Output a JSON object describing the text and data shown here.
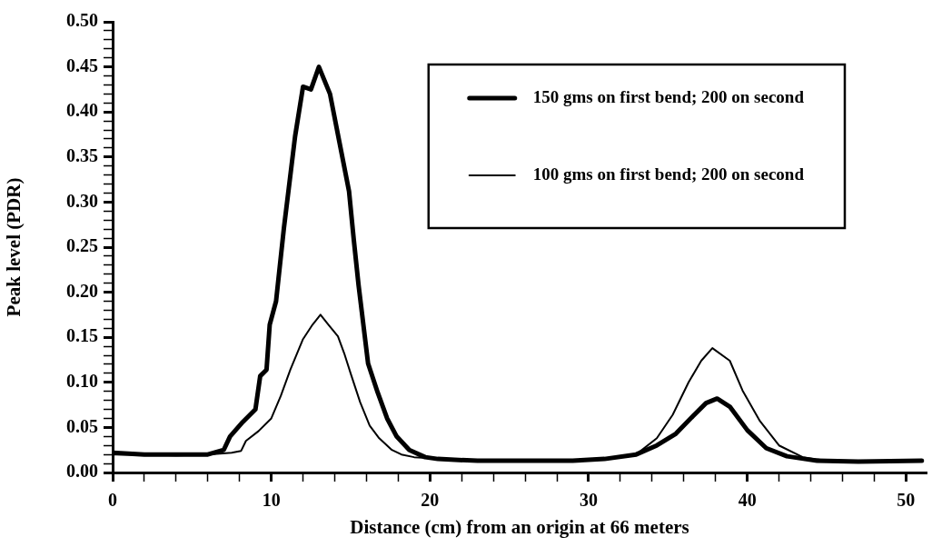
{
  "chart_data": {
    "type": "line",
    "xlabel": "Distance (cm) from an origin at 66 meters",
    "ylabel": "Peak level (PDR)",
    "xlim": [
      0,
      51.3
    ],
    "xticks": [
      0,
      {
        "value": 2,
        "label": null
      },
      {
        "value": 4,
        "label": null
      },
      {
        "value": 6,
        "label": null
      },
      {
        "value": 8,
        "label": null
      },
      10,
      {
        "value": 12,
        "label": null
      },
      {
        "value": 14,
        "label": null
      },
      {
        "value": 16,
        "label": null
      },
      {
        "value": 18,
        "label": null
      },
      20,
      {
        "value": 22,
        "label": null
      },
      {
        "value": 24,
        "label": null
      },
      {
        "value": 26,
        "label": null
      },
      {
        "value": 28,
        "label": null
      },
      30,
      {
        "value": 32,
        "label": null
      },
      {
        "value": 34,
        "label": null
      },
      {
        "value": 36,
        "label": null
      },
      {
        "value": 38,
        "label": null
      },
      40,
      {
        "value": 42,
        "label": null
      },
      {
        "value": 44,
        "label": null
      },
      {
        "value": 46,
        "label": null
      },
      {
        "value": 48,
        "label": null
      },
      50
    ],
    "ylim": [
      0,
      0.5
    ],
    "yticks": [
      {
        "value": 0,
        "label": "0.00"
      },
      {
        "value": 0.01,
        "label": null
      },
      {
        "value": 0.02,
        "label": null
      },
      {
        "value": 0.03,
        "label": null
      },
      {
        "value": 0.04,
        "label": null
      },
      {
        "value": 0.05,
        "label": "0.05"
      },
      {
        "value": 0.06,
        "label": null
      },
      {
        "value": 0.07,
        "label": null
      },
      {
        "value": 0.08,
        "label": null
      },
      {
        "value": 0.09,
        "label": null
      },
      {
        "value": 0.1,
        "label": "0.10"
      },
      {
        "value": 0.11,
        "label": null
      },
      {
        "value": 0.12,
        "label": null
      },
      {
        "value": 0.13,
        "label": null
      },
      {
        "value": 0.14,
        "label": null
      },
      {
        "value": 0.15,
        "label": "0.15"
      },
      {
        "value": 0.16,
        "label": null
      },
      {
        "value": 0.17,
        "label": null
      },
      {
        "value": 0.18,
        "label": null
      },
      {
        "value": 0.19,
        "label": null
      },
      {
        "value": 0.2,
        "label": "0.20"
      },
      {
        "value": 0.21,
        "label": null
      },
      {
        "value": 0.22,
        "label": null
      },
      {
        "value": 0.23,
        "label": null
      },
      {
        "value": 0.24,
        "label": null
      },
      {
        "value": 0.25,
        "label": "0.25"
      },
      {
        "value": 0.26,
        "label": null
      },
      {
        "value": 0.27,
        "label": null
      },
      {
        "value": 0.28,
        "label": null
      },
      {
        "value": 0.29,
        "label": null
      },
      {
        "value": 0.3,
        "label": "0.30"
      },
      {
        "value": 0.31,
        "label": null
      },
      {
        "value": 0.32,
        "label": null
      },
      {
        "value": 0.33,
        "label": null
      },
      {
        "value": 0.34,
        "label": null
      },
      {
        "value": 0.35,
        "label": "0.35"
      },
      {
        "value": 0.36,
        "label": null
      },
      {
        "value": 0.37,
        "label": null
      },
      {
        "value": 0.38,
        "label": null
      },
      {
        "value": 0.39,
        "label": null
      },
      {
        "value": 0.4,
        "label": "0.40"
      },
      {
        "value": 0.41,
        "label": null
      },
      {
        "value": 0.42,
        "label": null
      },
      {
        "value": 0.43,
        "label": null
      },
      {
        "value": 0.44,
        "label": null
      },
      {
        "value": 0.45,
        "label": "0.45"
      },
      {
        "value": 0.46,
        "label": null
      },
      {
        "value": 0.47,
        "label": null
      },
      {
        "value": 0.48,
        "label": null
      },
      {
        "value": 0.49,
        "label": null
      },
      {
        "value": 0.5,
        "label": "0.50"
      }
    ],
    "grid": false,
    "legend": "top right",
    "marker": "none",
    "line_style": "solid",
    "series": [
      {
        "name": "150 gms on first bend; 200 on second",
        "color": "#000000",
        "x": [
          0,
          2,
          4,
          6,
          7,
          7.4,
          8.2,
          9.0,
          9.3,
          9.7,
          9.9,
          10.3,
          10.8,
          11.1,
          11.5,
          12.0,
          12.5,
          13.0,
          13.7,
          14.3,
          14.9,
          15.2,
          15.5,
          16.1,
          16.7,
          17.3,
          17.9,
          18.7,
          19.7,
          20.5,
          23,
          26,
          29,
          31,
          33,
          34.3,
          35.5,
          36.6,
          37.4,
          38.1,
          38.9,
          40.0,
          41.2,
          42.5,
          44.4,
          47,
          51
        ],
        "values": [
          0.022,
          0.02,
          0.02,
          0.02,
          0.025,
          0.04,
          0.056,
          0.07,
          0.107,
          0.114,
          0.164,
          0.19,
          0.272,
          0.315,
          0.373,
          0.428,
          0.425,
          0.45,
          0.42,
          0.366,
          0.312,
          0.258,
          0.208,
          0.121,
          0.089,
          0.06,
          0.04,
          0.025,
          0.017,
          0.015,
          0.013,
          0.013,
          0.013,
          0.015,
          0.02,
          0.03,
          0.043,
          0.063,
          0.077,
          0.082,
          0.073,
          0.047,
          0.027,
          0.018,
          0.013,
          0.012,
          0.013
        ]
      },
      {
        "name": "100 gms on first bend; 200 on second",
        "color": "#000000",
        "x": [
          0,
          2,
          4,
          6,
          7.5,
          8.1,
          8.4,
          9.2,
          10.0,
          10.6,
          11.2,
          12.0,
          12.6,
          13.1,
          13.6,
          14.2,
          14.6,
          15.0,
          15.6,
          16.2,
          16.8,
          17.6,
          18.2,
          19,
          22,
          26,
          30,
          33,
          34.3,
          35.3,
          36.3,
          37.1,
          37.8,
          38.9,
          39.7,
          40.8,
          42.0,
          43.5,
          45,
          48,
          51
        ],
        "values": [
          0.02,
          0.02,
          0.019,
          0.02,
          0.022,
          0.024,
          0.035,
          0.046,
          0.06,
          0.085,
          0.114,
          0.148,
          0.164,
          0.175,
          0.164,
          0.151,
          0.132,
          0.11,
          0.078,
          0.052,
          0.038,
          0.025,
          0.02,
          0.017,
          0.014,
          0.013,
          0.013,
          0.02,
          0.038,
          0.064,
          0.1,
          0.124,
          0.138,
          0.124,
          0.091,
          0.057,
          0.03,
          0.017,
          0.013,
          0.012,
          0.012
        ]
      }
    ]
  }
}
